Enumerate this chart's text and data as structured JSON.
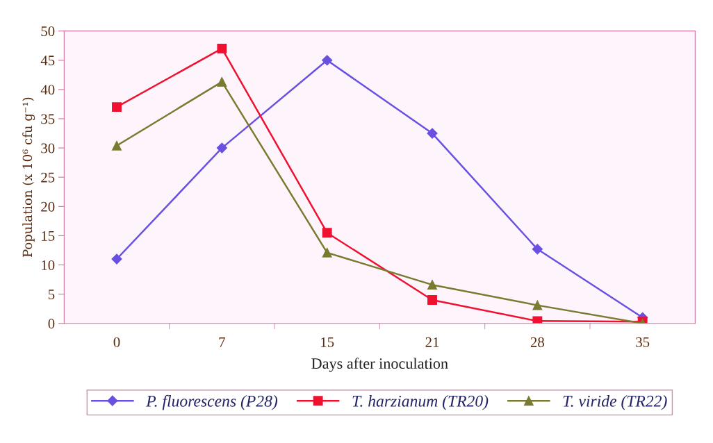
{
  "chart_data": {
    "type": "line",
    "xlabel": "Days after inoculation",
    "ylabel": "Population (x 10⁶ cfu g⁻¹)",
    "categories": [
      "0",
      "7",
      "15",
      "21",
      "28",
      "35"
    ],
    "ylim": [
      0,
      50
    ],
    "yticks": [
      0,
      5,
      10,
      15,
      20,
      25,
      30,
      35,
      40,
      45,
      50
    ],
    "grid": false,
    "legend": "bottom",
    "series": [
      {
        "name": "P. fluorescens (P28)",
        "color": "#6a50e0",
        "marker": "diamond",
        "values": [
          11,
          30,
          45,
          32.5,
          12.7,
          1
        ]
      },
      {
        "name": "T. harzianum (TR20)",
        "color": "#f01030",
        "marker": "square",
        "values": [
          37,
          47,
          15.5,
          4,
          0.4,
          0.3
        ]
      },
      {
        "name": "T. viride (TR22)",
        "color": "#7a7a30",
        "marker": "triangle",
        "values": [
          30.4,
          41.3,
          12.1,
          6.6,
          3.1,
          0
        ]
      }
    ]
  }
}
